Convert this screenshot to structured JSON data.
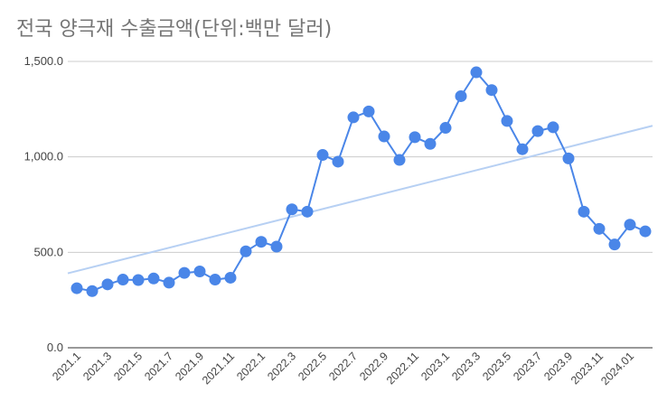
{
  "chart_data": {
    "type": "line",
    "title": "전국 양극재 수출금액(단위:백만 달러)",
    "xlabel": "",
    "ylabel": "",
    "ylim": [
      0,
      1500
    ],
    "grid": true,
    "legend": "none",
    "y_ticks": [
      "0.0",
      "500.0",
      "1,000.0",
      "1,500.0"
    ],
    "y_tick_values": [
      0,
      500,
      1000,
      1500
    ],
    "x_tick_labels": [
      "2021.1",
      "2021.3",
      "2021.5",
      "2021.7",
      "2021.9",
      "2021.11",
      "2022.1",
      "2022.3",
      "2022.5",
      "2022.7",
      "2022.9",
      "2022.11",
      "2023.1",
      "2023.3",
      "2023.5",
      "2023.7",
      "2023.9",
      "2023.11",
      "2024.01"
    ],
    "categories": [
      "2021.1",
      "2021.2",
      "2021.3",
      "2021.4",
      "2021.5",
      "2021.6",
      "2021.7",
      "2021.8",
      "2021.9",
      "2021.10",
      "2021.11",
      "2021.12",
      "2022.1",
      "2022.2",
      "2022.3",
      "2022.4",
      "2022.5",
      "2022.6",
      "2022.7",
      "2022.8",
      "2022.9",
      "2022.10",
      "2022.11",
      "2022.12",
      "2023.1",
      "2023.2",
      "2023.3",
      "2023.4",
      "2023.5",
      "2023.6",
      "2023.7",
      "2023.8",
      "2023.9",
      "2023.10",
      "2023.11",
      "2023.12",
      "2024.01",
      "2024.02"
    ],
    "series": [
      {
        "values": [
          312,
          297,
          332,
          357,
          355,
          363,
          341,
          392,
          400,
          357,
          367,
          505,
          555,
          530,
          725,
          713,
          1010,
          975,
          1207,
          1238,
          1107,
          984,
          1103,
          1068,
          1152,
          1318,
          1443,
          1350,
          1188,
          1040,
          1135,
          1155,
          992,
          713,
          623,
          541,
          645,
          610
        ],
        "color": "#4a86e8"
      }
    ],
    "trendline": {
      "type": "linear",
      "start": 390,
      "end": 1163,
      "color": "#b7d0f3"
    }
  }
}
